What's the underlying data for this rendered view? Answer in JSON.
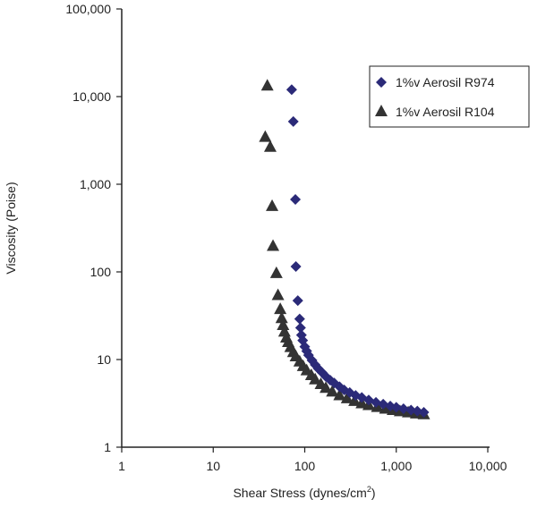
{
  "chart_data": {
    "type": "scatter",
    "title": "",
    "xlabel": "Shear Stress (dynes/cm²)",
    "xlabel_main": "Shear Stress (dynes/cm",
    "xlabel_sup": "2",
    "xlabel_end": ")",
    "ylabel": "Viscosity (Poise)",
    "xscale": "log",
    "yscale": "log",
    "xlim": [
      1,
      10000
    ],
    "ylim": [
      1,
      100000
    ],
    "xticks": [
      {
        "v": 1,
        "label": "1"
      },
      {
        "v": 10,
        "label": "10"
      },
      {
        "v": 100,
        "label": "100"
      },
      {
        "v": 1000,
        "label": "1,000"
      },
      {
        "v": 10000,
        "label": "10,000"
      }
    ],
    "yticks": [
      {
        "v": 1,
        "label": "1"
      },
      {
        "v": 10,
        "label": "10"
      },
      {
        "v": 100,
        "label": "100"
      },
      {
        "v": 1000,
        "label": "1,000"
      },
      {
        "v": 10000,
        "label": "10,000"
      },
      {
        "v": 100000,
        "label": "100,000"
      }
    ],
    "grid": false,
    "legend_position": "top-right",
    "series": [
      {
        "name": "1%v Aerosil R974",
        "marker": "diamond",
        "color": "#2b2a78",
        "points": [
          [
            72,
            12000
          ],
          [
            75,
            5200
          ],
          [
            79,
            670
          ],
          [
            80,
            115
          ],
          [
            84,
            47
          ],
          [
            88,
            29
          ],
          [
            90,
            23
          ],
          [
            92,
            19
          ],
          [
            95,
            16.5
          ],
          [
            100,
            14
          ],
          [
            105,
            12.5
          ],
          [
            110,
            11.2
          ],
          [
            120,
            9.8
          ],
          [
            130,
            8.7
          ],
          [
            140,
            7.9
          ],
          [
            155,
            7.1
          ],
          [
            170,
            6.4
          ],
          [
            190,
            5.8
          ],
          [
            210,
            5.4
          ],
          [
            240,
            4.9
          ],
          [
            270,
            4.5
          ],
          [
            310,
            4.2
          ],
          [
            360,
            3.9
          ],
          [
            420,
            3.7
          ],
          [
            500,
            3.45
          ],
          [
            600,
            3.25
          ],
          [
            720,
            3.1
          ],
          [
            860,
            2.95
          ],
          [
            1000,
            2.85
          ],
          [
            1200,
            2.75
          ],
          [
            1450,
            2.65
          ],
          [
            1700,
            2.58
          ],
          [
            2000,
            2.5
          ]
        ]
      },
      {
        "name": "1%v Aerosil R104",
        "marker": "triangle",
        "color": "#333333",
        "points": [
          [
            39,
            13500
          ],
          [
            37,
            3500
          ],
          [
            42,
            2700
          ],
          [
            44,
            570
          ],
          [
            45,
            200
          ],
          [
            49,
            98
          ],
          [
            51,
            55
          ],
          [
            54,
            38
          ],
          [
            56,
            30
          ],
          [
            58,
            25
          ],
          [
            60,
            21
          ],
          [
            63,
            18
          ],
          [
            66,
            16
          ],
          [
            70,
            14
          ],
          [
            75,
            12.3
          ],
          [
            80,
            11
          ],
          [
            88,
            9.6
          ],
          [
            96,
            8.5
          ],
          [
            105,
            7.6
          ],
          [
            118,
            6.7
          ],
          [
            130,
            6.0
          ],
          [
            150,
            5.3
          ],
          [
            170,
            4.8
          ],
          [
            200,
            4.35
          ],
          [
            240,
            3.95
          ],
          [
            290,
            3.65
          ],
          [
            350,
            3.4
          ],
          [
            420,
            3.2
          ],
          [
            500,
            3.05
          ],
          [
            620,
            2.9
          ],
          [
            760,
            2.78
          ],
          [
            920,
            2.68
          ],
          [
            1100,
            2.6
          ],
          [
            1350,
            2.52
          ],
          [
            1650,
            2.45
          ],
          [
            2000,
            2.4
          ]
        ]
      }
    ]
  }
}
